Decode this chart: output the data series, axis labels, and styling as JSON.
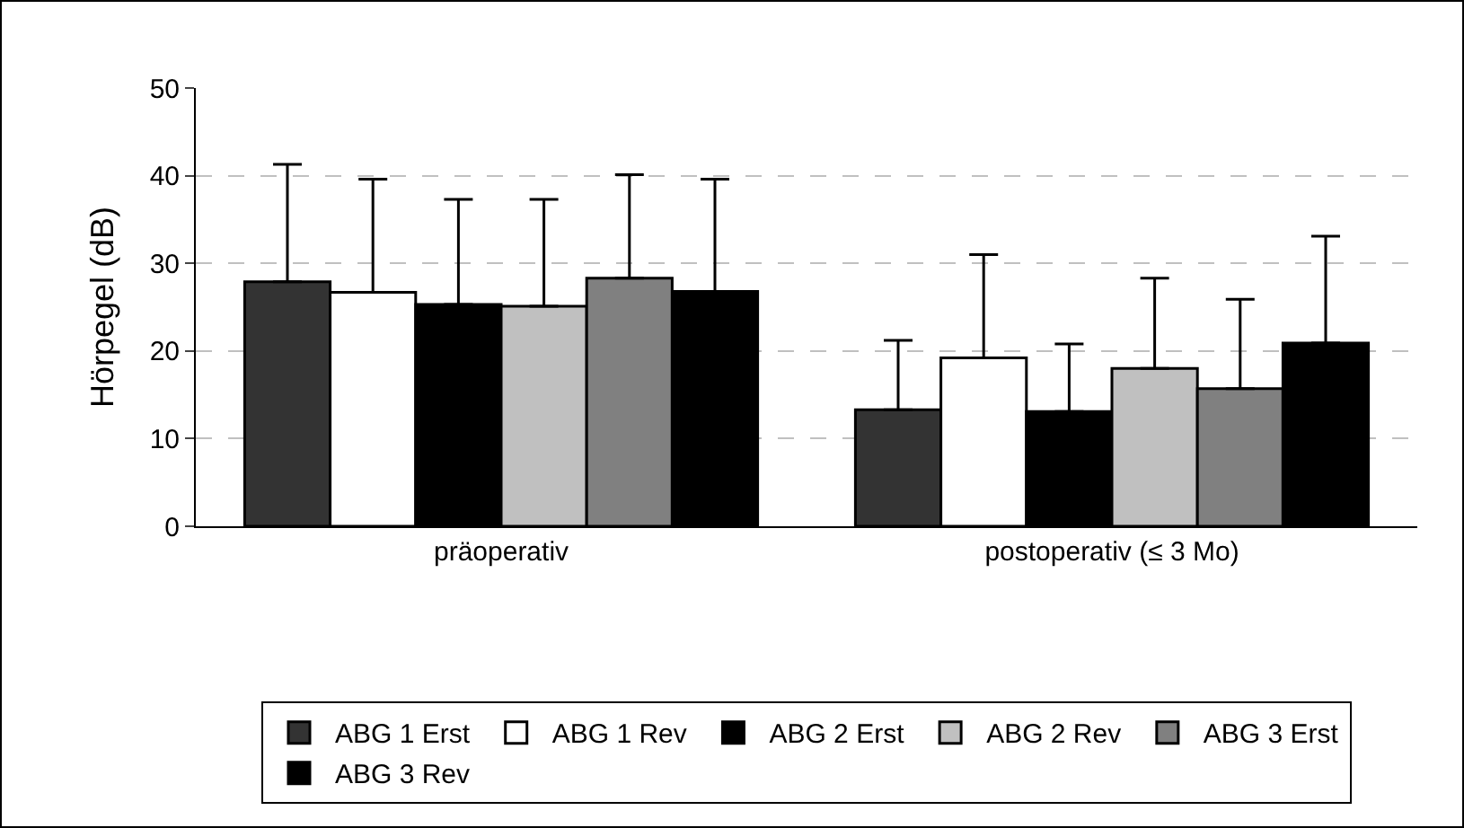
{
  "chart_data": {
    "type": "bar",
    "ylabel": "Hörpegel (dB)",
    "categories": [
      "präoperativ",
      "postoperativ (≤ 3 Mo)"
    ],
    "series": [
      {
        "name": "ABG 1 Erst",
        "color": "#333333",
        "values": [
          27.9,
          13.3
        ],
        "errors": [
          [
            27.9,
            41.3
          ],
          [
            13.3,
            21.2
          ]
        ]
      },
      {
        "name": "ABG 1 Rev",
        "color": "#ffffff",
        "values": [
          26.7,
          19.2
        ],
        "errors": [
          [
            26.7,
            39.6
          ],
          [
            19.2,
            31.0
          ]
        ]
      },
      {
        "name": "ABG 2 Erst",
        "color": "#000000",
        "values": [
          25.3,
          13.1
        ],
        "errors": [
          [
            25.3,
            37.3
          ],
          [
            13.1,
            20.8
          ]
        ]
      },
      {
        "name": "ABG 2 Rev",
        "color": "#c0c0c0",
        "values": [
          25.1,
          18.0
        ],
        "errors": [
          [
            25.1,
            37.3
          ],
          [
            18.0,
            28.3
          ]
        ]
      },
      {
        "name": "ABG 3 Erst",
        "color": "#808080",
        "values": [
          28.3,
          15.7
        ],
        "errors": [
          [
            28.3,
            40.1
          ],
          [
            15.7,
            25.9
          ]
        ]
      },
      {
        "name": "ABG 3 Rev",
        "color": "#000000",
        "values": [
          26.8,
          20.9
        ],
        "errors": [
          [
            26.8,
            39.6
          ],
          [
            20.9,
            33.1
          ]
        ]
      }
    ],
    "ylim": [
      0,
      50
    ],
    "yticks": [
      0,
      10,
      20,
      30,
      40,
      50
    ],
    "grid": "y",
    "legend": "bottom"
  }
}
